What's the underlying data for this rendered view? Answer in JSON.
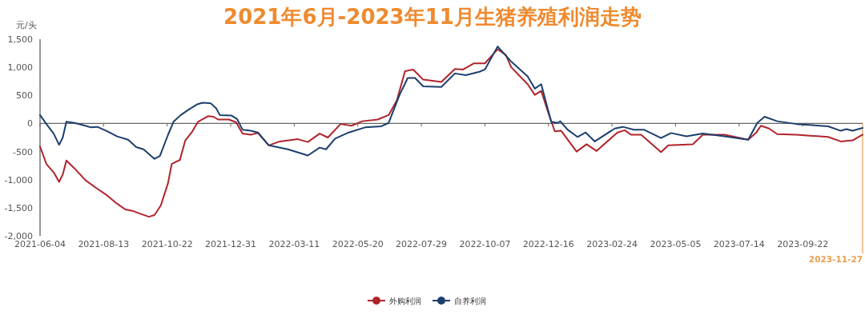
{
  "chart_data": {
    "type": "line",
    "title": "2021年6月-2023年11月生猪养殖利润走势",
    "ylabel": "元/头",
    "xlim": [
      "2021-06-04",
      "2023-11-27"
    ],
    "xticks": [
      {
        "value": "2021-06-04",
        "label": "2021-06-04"
      },
      {
        "value": "2021-08-13",
        "label": "2021-08-13"
      },
      {
        "value": "2021-10-22",
        "label": "2021-10-22"
      },
      {
        "value": "2021-12-31",
        "label": "2021-12-31"
      },
      {
        "value": "2022-03-11",
        "label": "2022-03-11"
      },
      {
        "value": "2022-05-20",
        "label": "2022-05-20"
      },
      {
        "value": "2022-07-29",
        "label": "2022-07-29"
      },
      {
        "value": "2022-10-07",
        "label": "2022-10-07"
      },
      {
        "value": "2022-12-16",
        "label": "2022-12-16"
      },
      {
        "value": "2023-02-24",
        "label": "2023-02-24"
      },
      {
        "value": "2023-05-05",
        "label": "2023-05-05"
      },
      {
        "value": "2023-07-14",
        "label": "2023-07-14"
      },
      {
        "value": "2023-09-22",
        "label": "2023-09-22"
      }
    ],
    "ylim": [
      -2000,
      1500
    ],
    "yticks": [
      {
        "value": -2000,
        "label": "-2,000"
      },
      {
        "value": -1500,
        "label": "-1,500"
      },
      {
        "value": -1000,
        "label": "-1,000"
      },
      -500,
      0,
      500,
      {
        "value": 1000,
        "label": "1,000"
      },
      {
        "value": 1500,
        "label": "1,500"
      }
    ],
    "legend": "bottom",
    "ref_lines": [
      {
        "axis": "x",
        "value": "2023-11-27",
        "label": "2023-11-27",
        "color": "#e8a050"
      }
    ],
    "series": [
      {
        "name": "外购利润",
        "color": "#b0242c",
        "x": [
          "2021-06-04",
          "2021-06-11",
          "2021-06-19",
          "2021-06-25",
          "2021-06-29",
          "2021-07-03",
          "2021-07-12",
          "2021-07-24",
          "2021-08-05",
          "2021-08-16",
          "2021-08-28",
          "2021-09-06",
          "2021-09-15",
          "2021-09-23",
          "2021-10-02",
          "2021-10-08",
          "2021-10-15",
          "2021-10-23",
          "2021-10-27",
          "2021-11-01",
          "2021-11-05",
          "2021-11-11",
          "2021-11-18",
          "2021-11-25",
          "2021-12-06",
          "2021-12-12",
          "2021-12-17",
          "2021-12-29",
          "2022-01-06",
          "2022-01-13",
          "2022-01-22",
          "2022-01-30",
          "2022-02-11",
          "2022-02-23",
          "2022-03-15",
          "2022-03-26",
          "2022-04-08",
          "2022-04-17",
          "2022-05-01",
          "2022-05-13",
          "2022-05-25",
          "2022-06-11",
          "2022-06-23",
          "2022-07-02",
          "2022-07-11",
          "2022-07-20",
          "2022-07-31",
          "2022-08-20",
          "2022-09-04",
          "2022-09-13",
          "2022-09-25",
          "2022-10-07",
          "2022-10-21",
          "2022-10-30",
          "2022-11-05",
          "2022-11-23",
          "2022-12-01",
          "2022-12-08",
          "2022-12-16",
          "2022-12-23",
          "2022-12-30",
          "2023-01-16",
          "2023-01-27",
          "2023-02-07",
          "2023-03-02",
          "2023-03-10",
          "2023-03-17",
          "2023-03-28",
          "2023-04-19",
          "2023-04-27",
          "2023-05-24",
          "2023-06-04",
          "2023-06-28",
          "2023-07-24",
          "2023-08-02",
          "2023-08-07",
          "2023-08-16",
          "2023-08-25",
          "2023-09-15",
          "2023-10-20",
          "2023-11-03",
          "2023-11-16",
          "2023-11-27"
        ],
        "values": [
          -410,
          -720,
          -870,
          -1040,
          -910,
          -660,
          -800,
          -1010,
          -1150,
          -1270,
          -1430,
          -1530,
          -1560,
          -1610,
          -1660,
          -1630,
          -1460,
          -1060,
          -720,
          -680,
          -650,
          -300,
          -160,
          30,
          130,
          120,
          70,
          70,
          20,
          -180,
          -200,
          -170,
          -390,
          -320,
          -280,
          -330,
          -180,
          -250,
          -10,
          -40,
          40,
          70,
          150,
          410,
          930,
          960,
          780,
          740,
          970,
          960,
          1070,
          1070,
          1320,
          1220,
          1000,
          700,
          510,
          580,
          180,
          -140,
          -130,
          -500,
          -370,
          -490,
          -160,
          -120,
          -200,
          -200,
          -510,
          -390,
          -370,
          -200,
          -200,
          -290,
          -160,
          -40,
          -90,
          -190,
          -200,
          -240,
          -320,
          -300,
          -200
        ]
      },
      {
        "name": "自养利润",
        "color": "#1c3f6e",
        "x": [
          "2021-06-04",
          "2021-06-11",
          "2021-06-19",
          "2021-06-25",
          "2021-06-29",
          "2021-07-03",
          "2021-07-12",
          "2021-07-24",
          "2021-07-30",
          "2021-08-06",
          "2021-08-16",
          "2021-08-28",
          "2021-09-09",
          "2021-09-18",
          "2021-09-26",
          "2021-10-08",
          "2021-10-14",
          "2021-10-23",
          "2021-10-29",
          "2021-11-06",
          "2021-11-15",
          "2021-11-24",
          "2021-11-30",
          "2021-12-09",
          "2021-12-15",
          "2021-12-19",
          "2022-01-01",
          "2022-01-07",
          "2022-01-13",
          "2022-01-22",
          "2022-01-30",
          "2022-02-11",
          "2022-03-04",
          "2022-03-26",
          "2022-04-08",
          "2022-04-15",
          "2022-04-25",
          "2022-05-10",
          "2022-05-28",
          "2022-06-15",
          "2022-06-23",
          "2022-07-05",
          "2022-07-14",
          "2022-07-22",
          "2022-07-31",
          "2022-08-20",
          "2022-09-04",
          "2022-09-16",
          "2022-10-01",
          "2022-10-07",
          "2022-10-21",
          "2022-11-05",
          "2022-11-23",
          "2022-12-01",
          "2022-12-08",
          "2022-12-19",
          "2022-12-26",
          "2022-12-29",
          "2023-01-06",
          "2023-01-17",
          "2023-01-26",
          "2023-02-05",
          "2023-02-27",
          "2023-03-08",
          "2023-03-20",
          "2023-03-31",
          "2023-04-19",
          "2023-04-30",
          "2023-05-17",
          "2023-06-04",
          "2023-06-28",
          "2023-07-24",
          "2023-08-03",
          "2023-08-11",
          "2023-08-25",
          "2023-09-15",
          "2023-10-20",
          "2023-11-03",
          "2023-11-09",
          "2023-11-16",
          "2023-11-27"
        ],
        "values": [
          150,
          -10,
          -180,
          -380,
          -250,
          30,
          10,
          -40,
          -70,
          -60,
          -130,
          -230,
          -290,
          -420,
          -460,
          -630,
          -580,
          -200,
          30,
          150,
          250,
          340,
          370,
          360,
          270,
          150,
          140,
          80,
          -110,
          -130,
          -160,
          -390,
          -460,
          -570,
          -430,
          -460,
          -270,
          -160,
          -70,
          -50,
          10,
          510,
          810,
          810,
          660,
          650,
          890,
          860,
          920,
          960,
          1370,
          1100,
          840,
          620,
          700,
          30,
          10,
          40,
          -110,
          -240,
          -160,
          -320,
          -90,
          -60,
          -110,
          -110,
          -260,
          -170,
          -230,
          -180,
          -230,
          -290,
          10,
          120,
          40,
          -10,
          -50,
          -130,
          -100,
          -130,
          -80
        ]
      }
    ]
  }
}
